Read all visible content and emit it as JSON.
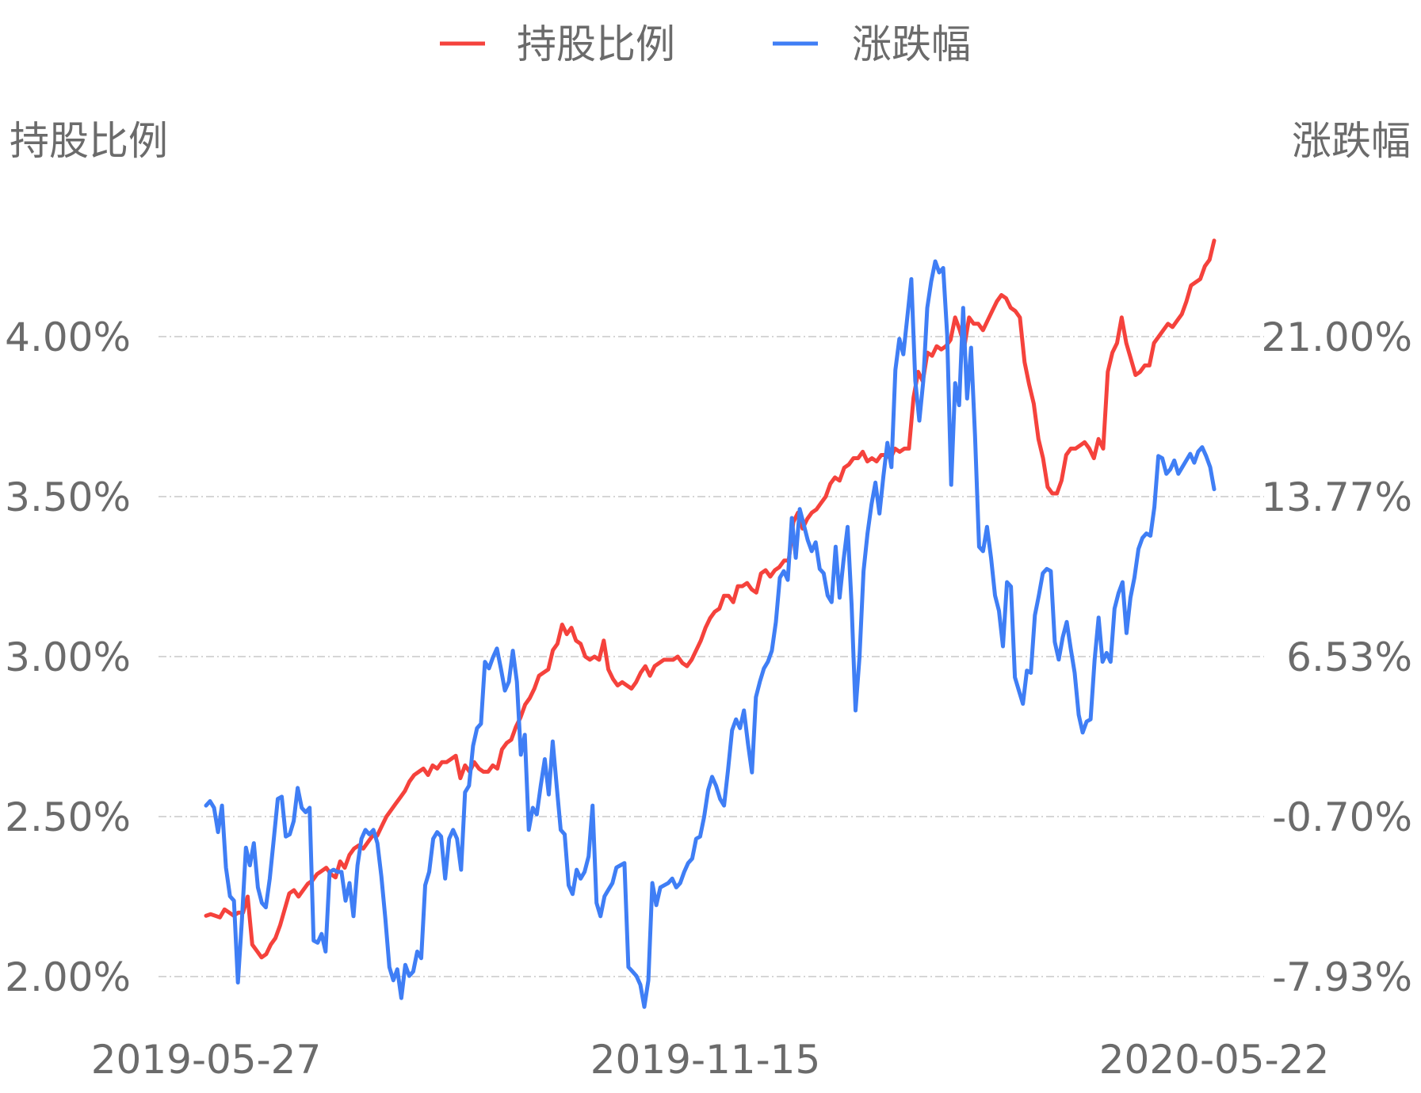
{
  "chart_data": {
    "type": "line",
    "legend_position": "top-center",
    "grid": true,
    "left_axis": {
      "title": "持股比例",
      "ticks": [
        "2.00%",
        "2.50%",
        "3.00%",
        "3.50%",
        "4.00%"
      ],
      "ylim": [
        2.0,
        4.0
      ]
    },
    "right_axis": {
      "title": "涨跌幅",
      "ticks": [
        "-7.93%",
        "-0.70%",
        "6.53%",
        "13.77%",
        "21.00%"
      ],
      "ylim": [
        -7.93,
        21.0
      ]
    },
    "x_axis": {
      "tick_labels": [
        "2019-05-27",
        "2019-11-15",
        "2020-05-22"
      ],
      "range": [
        "2019-05-27",
        "2020-05-22"
      ]
    },
    "series": [
      {
        "name": "持股比例",
        "axis": "left",
        "color": "#f5423c",
        "values": [
          2.19,
          2.195,
          2.19,
          2.185,
          2.21,
          2.2,
          2.19,
          2.2,
          2.2,
          2.25,
          2.1,
          2.08,
          2.06,
          2.07,
          2.1,
          2.12,
          2.16,
          2.21,
          2.26,
          2.27,
          2.25,
          2.27,
          2.29,
          2.3,
          2.32,
          2.33,
          2.34,
          2.32,
          2.31,
          2.36,
          2.34,
          2.38,
          2.4,
          2.41,
          2.4,
          2.42,
          2.44,
          2.44,
          2.47,
          2.5,
          2.52,
          2.54,
          2.56,
          2.58,
          2.61,
          2.63,
          2.64,
          2.65,
          2.63,
          2.66,
          2.65,
          2.67,
          2.67,
          2.68,
          2.69,
          2.62,
          2.66,
          2.64,
          2.67,
          2.65,
          2.64,
          2.64,
          2.66,
          2.65,
          2.71,
          2.73,
          2.74,
          2.78,
          2.81,
          2.85,
          2.87,
          2.9,
          2.94,
          2.95,
          2.96,
          3.02,
          3.04,
          3.1,
          3.07,
          3.09,
          3.05,
          3.04,
          3.0,
          2.99,
          3.0,
          2.99,
          3.05,
          2.96,
          2.93,
          2.91,
          2.92,
          2.91,
          2.9,
          2.92,
          2.95,
          2.97,
          2.94,
          2.97,
          2.98,
          2.99,
          2.99,
          2.99,
          3.0,
          2.98,
          2.97,
          2.99,
          3.02,
          3.05,
          3.09,
          3.12,
          3.14,
          3.15,
          3.19,
          3.19,
          3.17,
          3.22,
          3.22,
          3.23,
          3.21,
          3.2,
          3.26,
          3.27,
          3.25,
          3.27,
          3.28,
          3.3,
          3.3,
          3.42,
          3.45,
          3.4,
          3.43,
          3.45,
          3.46,
          3.48,
          3.5,
          3.54,
          3.56,
          3.55,
          3.59,
          3.6,
          3.62,
          3.62,
          3.64,
          3.61,
          3.62,
          3.61,
          3.63,
          3.63,
          3.62,
          3.65,
          3.64,
          3.65,
          3.65,
          3.81,
          3.89,
          3.86,
          3.95,
          3.94,
          3.97,
          3.96,
          3.97,
          3.99,
          4.06,
          4.02,
          3.97,
          4.06,
          4.04,
          4.04,
          4.02,
          4.05,
          4.08,
          4.11,
          4.13,
          4.12,
          4.09,
          4.08,
          4.06,
          3.92,
          3.85,
          3.79,
          3.68,
          3.62,
          3.53,
          3.51,
          3.51,
          3.55,
          3.63,
          3.65,
          3.65,
          3.66,
          3.67,
          3.65,
          3.62,
          3.68,
          3.65,
          3.89,
          3.95,
          3.98,
          4.06,
          3.98,
          3.93,
          3.88,
          3.89,
          3.91,
          3.91,
          3.98,
          4.0,
          4.02,
          4.04,
          4.03,
          4.05,
          4.07,
          4.11,
          4.16,
          4.17,
          4.18,
          4.22,
          4.24,
          4.3
        ]
      },
      {
        "name": "涨跌幅",
        "axis": "right",
        "color": "#3f7ef5",
        "values": [
          -0.2,
          0.0,
          -0.3,
          -1.4,
          -0.2,
          -3.0,
          -4.3,
          -4.5,
          -8.2,
          -5.4,
          -2.1,
          -2.9,
          -1.9,
          -3.9,
          -4.6,
          -4.8,
          -3.5,
          -1.7,
          0.1,
          0.2,
          -1.6,
          -1.5,
          -0.9,
          0.6,
          -0.3,
          -0.5,
          -0.3,
          -6.3,
          -6.4,
          -6.0,
          -6.8,
          -3.2,
          -3.1,
          -3.2,
          -3.2,
          -4.5,
          -3.7,
          -5.2,
          -2.9,
          -1.7,
          -1.3,
          -1.5,
          -1.3,
          -1.9,
          -3.4,
          -5.3,
          -7.5,
          -8.1,
          -7.6,
          -8.9,
          -7.4,
          -7.9,
          -7.7,
          -6.8,
          -7.1,
          -3.8,
          -3.2,
          -1.7,
          -1.4,
          -1.6,
          -3.5,
          -1.7,
          -1.3,
          -1.7,
          -3.1,
          0.4,
          0.7,
          2.5,
          3.3,
          3.5,
          6.3,
          6.0,
          6.5,
          6.9,
          6.0,
          5.0,
          5.4,
          6.8,
          5.4,
          2.1,
          3.0,
          -1.3,
          -0.3,
          -0.6,
          0.7,
          1.9,
          0.3,
          2.7,
          0.7,
          -1.3,
          -1.5,
          -3.8,
          -4.2,
          -3.1,
          -3.5,
          -3.2,
          -2.5,
          -0.2,
          -4.6,
          -5.2,
          -4.3,
          -4.0,
          -3.7,
          -3.0,
          -2.9,
          -2.8,
          -7.5,
          -7.7,
          -7.9,
          -8.3,
          -9.3,
          -8.1,
          -3.7,
          -4.7,
          -3.9,
          -3.8,
          -3.7,
          -3.5,
          -3.9,
          -3.7,
          -3.2,
          -2.8,
          -2.6,
          -1.7,
          -1.6,
          -0.7,
          0.5,
          1.1,
          0.7,
          0.1,
          -0.2,
          1.4,
          3.2,
          3.7,
          3.3,
          4.1,
          2.6,
          1.3,
          4.7,
          5.4,
          6.0,
          6.3,
          6.8,
          8.1,
          10.1,
          10.4,
          10.0,
          12.8,
          11.0,
          13.2,
          12.5,
          11.8,
          11.3,
          11.7,
          10.5,
          10.3,
          9.3,
          9.0,
          11.5,
          9.2,
          10.9,
          12.4,
          8.9,
          4.1,
          6.5,
          10.4,
          12.1,
          13.4,
          14.4,
          13.0,
          14.7,
          16.2,
          15.1,
          19.5,
          20.9,
          20.2,
          21.9,
          23.6,
          19.0,
          17.2,
          19.0,
          22.3,
          23.5,
          24.4,
          23.9,
          24.1,
          21.1,
          14.3,
          18.9,
          17.9,
          22.3,
          18.2,
          20.5,
          16.5,
          11.5,
          11.3,
          12.4,
          11.0,
          9.3,
          8.6,
          7.0,
          9.9,
          9.7,
          5.6,
          5.0,
          4.4,
          5.9,
          5.8,
          8.4,
          9.3,
          10.3,
          10.5,
          10.4,
          7.2,
          6.4,
          7.4,
          8.1,
          6.9,
          5.8,
          3.9,
          3.1,
          3.6,
          3.7,
          6.4,
          8.3,
          6.3,
          6.7,
          6.3,
          8.7,
          9.4,
          9.9,
          7.6,
          9.2,
          10.1,
          11.4,
          11.9,
          12.1,
          12.0,
          13.3,
          15.6,
          15.5,
          14.8,
          15.0,
          15.4,
          14.8,
          15.1,
          15.4,
          15.7,
          15.3,
          15.8,
          16.0,
          15.6,
          15.1,
          14.1
        ]
      }
    ]
  }
}
